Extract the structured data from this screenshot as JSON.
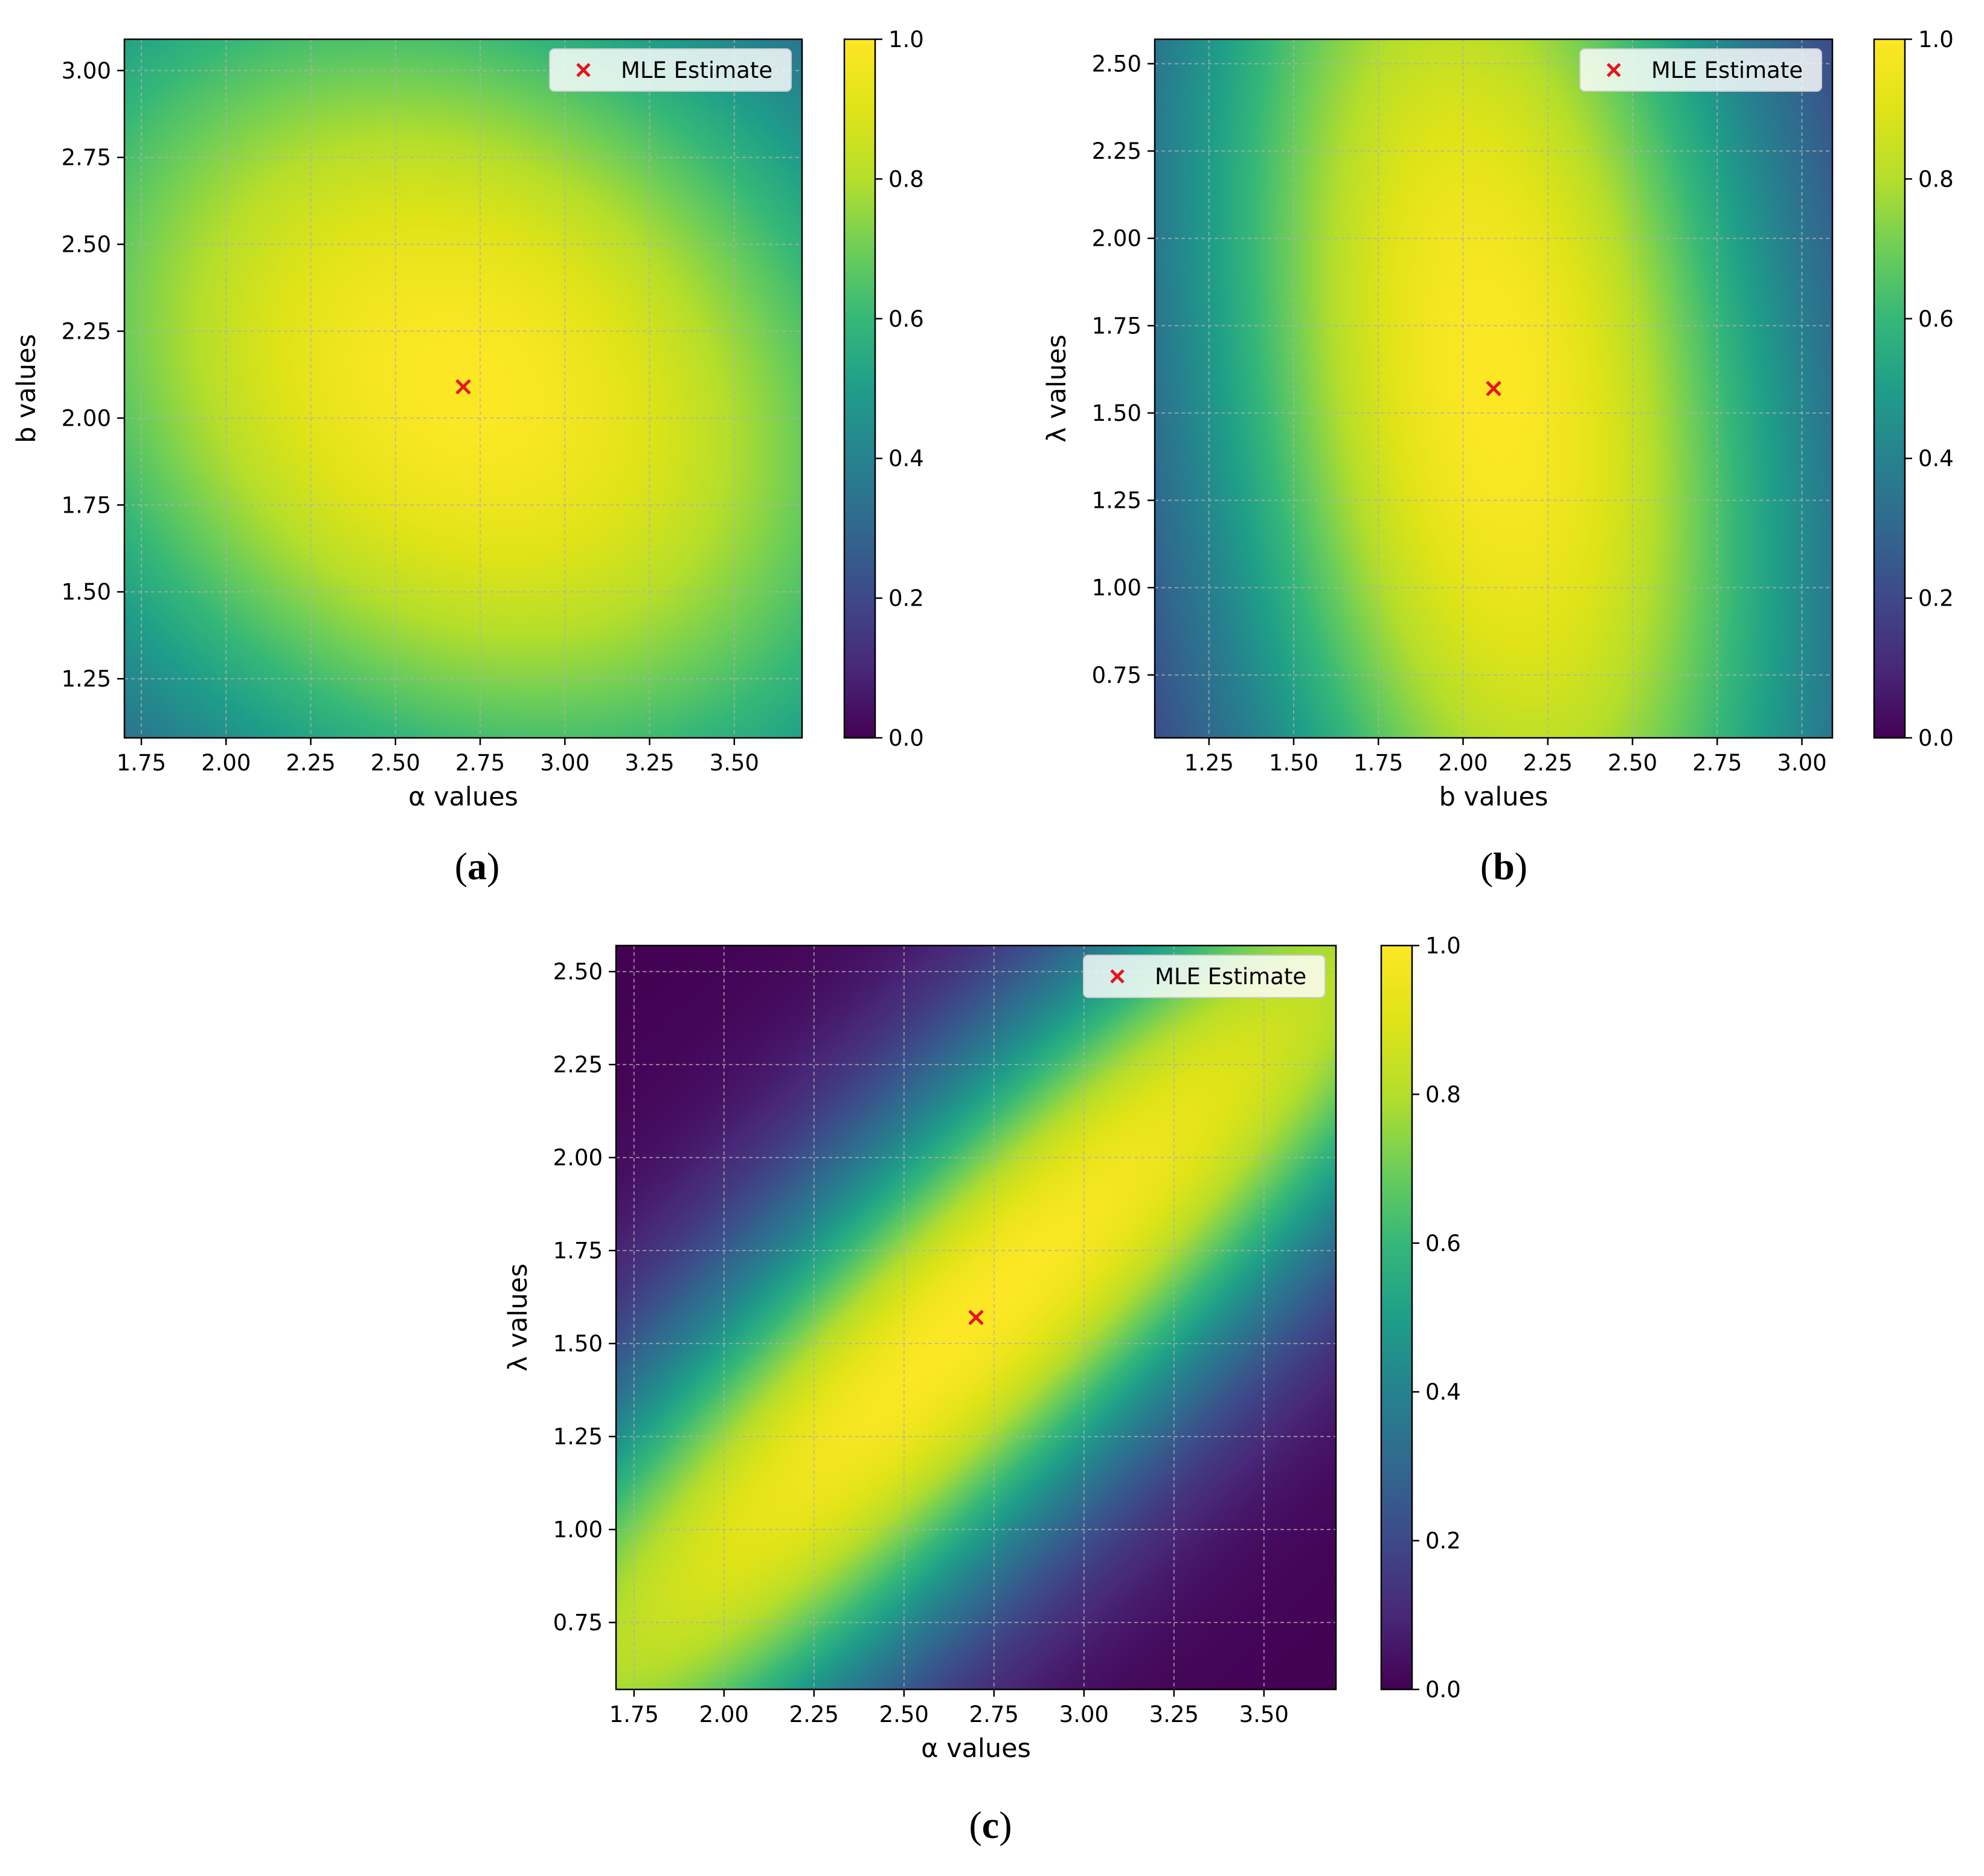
{
  "colormap": "viridis",
  "legend_label": "MLE Estimate",
  "marker_color": "#e8141b",
  "chart_data": [
    {
      "id": "a",
      "panel_label": "(a)",
      "type": "heatmap",
      "xlabel": "α values",
      "ylabel": "b values",
      "xlim": [
        1.7,
        3.7
      ],
      "ylim": [
        1.08,
        3.09
      ],
      "xticks": [
        "1.75",
        "2.00",
        "2.25",
        "2.50",
        "2.75",
        "3.00",
        "3.25",
        "3.50"
      ],
      "yticks": [
        "1.25",
        "1.50",
        "1.75",
        "2.00",
        "2.25",
        "2.50",
        "2.75",
        "3.00"
      ],
      "mle": {
        "x": 2.7,
        "y": 2.09
      },
      "colorbar": {
        "range": [
          0.0,
          1.0
        ],
        "ticks": [
          "0.0",
          "0.2",
          "0.4",
          "0.6",
          "0.8",
          "1.0"
        ]
      },
      "legend": "upper right",
      "grid": true
    },
    {
      "id": "b",
      "panel_label": "(b)",
      "type": "heatmap",
      "xlabel": "b values",
      "ylabel": "λ values",
      "xlim": [
        1.09,
        3.09
      ],
      "ylim": [
        0.57,
        2.57
      ],
      "xticks": [
        "1.25",
        "1.50",
        "1.75",
        "2.00",
        "2.25",
        "2.50",
        "2.75",
        "3.00"
      ],
      "yticks": [
        "0.75",
        "1.00",
        "1.25",
        "1.50",
        "1.75",
        "2.00",
        "2.25",
        "2.50"
      ],
      "mle": {
        "x": 2.09,
        "y": 1.57
      },
      "colorbar": {
        "range": [
          0.0,
          1.0
        ],
        "ticks": [
          "0.0",
          "0.2",
          "0.4",
          "0.6",
          "0.8",
          "1.0"
        ]
      },
      "legend": "upper right",
      "grid": true
    },
    {
      "id": "c",
      "panel_label": "(c)",
      "type": "heatmap",
      "xlabel": "α values",
      "ylabel": "λ values",
      "xlim": [
        1.7,
        3.7
      ],
      "ylim": [
        0.57,
        2.57
      ],
      "xticks": [
        "1.75",
        "2.00",
        "2.25",
        "2.50",
        "2.75",
        "3.00",
        "3.25",
        "3.50"
      ],
      "yticks": [
        "0.75",
        "1.00",
        "1.25",
        "1.50",
        "1.75",
        "2.00",
        "2.25",
        "2.50"
      ],
      "mle": {
        "x": 2.7,
        "y": 1.57
      },
      "colorbar": {
        "range": [
          0.0,
          1.0
        ],
        "ticks": [
          "0.0",
          "0.2",
          "0.4",
          "0.6",
          "0.8",
          "1.0"
        ]
      },
      "legend": "upper right",
      "grid": true
    }
  ]
}
